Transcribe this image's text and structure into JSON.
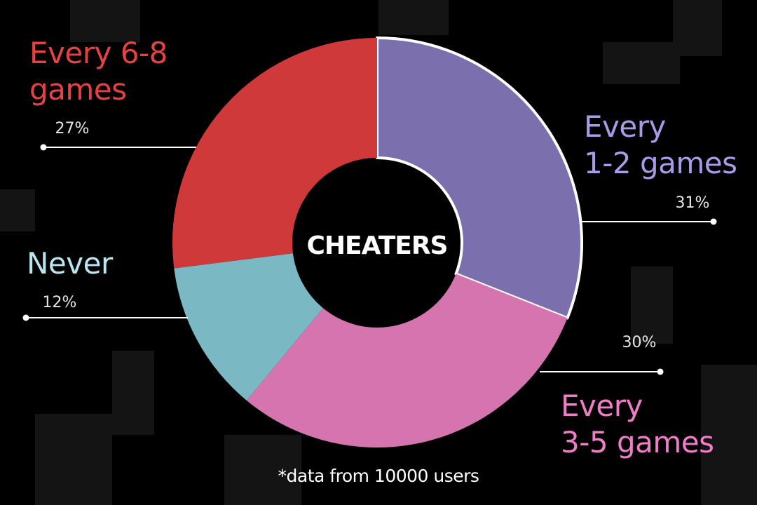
{
  "chart_data": {
    "type": "donut",
    "title": "CHEATERS",
    "note": "*data from 10000 users",
    "categories": [
      "Every\n1-2 games",
      "Every\n3-5 games",
      "Never",
      "Every 6-8\ngames"
    ],
    "values": [
      31,
      30,
      12,
      27
    ],
    "value_labels": [
      "31%",
      "30%",
      "12%",
      "27%"
    ],
    "colors": [
      "#7b6fae",
      "#d674b0",
      "#7ab8c4",
      "#d0393a"
    ],
    "label_colors": [
      "#a99be8",
      "#f07dc8",
      "#b7e6ee",
      "#e8413f"
    ]
  }
}
